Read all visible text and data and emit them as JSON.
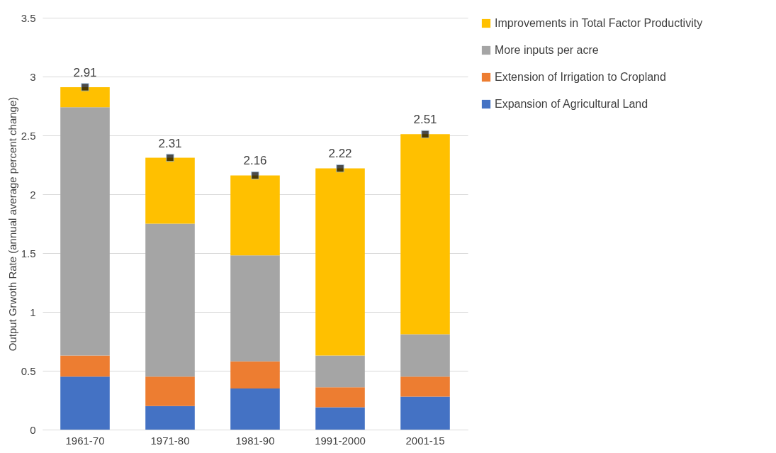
{
  "chart_data": {
    "type": "bar",
    "stacked": true,
    "ylabel": "Output Grwoth Rate (annual average percent change)",
    "categories": [
      "1961-70",
      "1971-80",
      "1981-90",
      "1991-2000",
      "2001-15"
    ],
    "series": [
      {
        "name": "Expansion of Agricultural Land",
        "color": "#4472c4",
        "values": [
          0.45,
          0.2,
          0.35,
          0.19,
          0.28
        ]
      },
      {
        "name": "Extension of Irrigation to Cropland",
        "color": "#ed7d31",
        "values": [
          0.18,
          0.25,
          0.23,
          0.17,
          0.17
        ]
      },
      {
        "name": "More inputs per acre",
        "color": "#a5a5a5",
        "values": [
          2.11,
          1.3,
          0.9,
          0.27,
          0.36
        ]
      },
      {
        "name": "Improvements in Total Factor Productivity",
        "color": "#ffc000",
        "values": [
          0.17,
          0.56,
          0.68,
          1.59,
          1.7
        ]
      },
      {
        "type": "scatter",
        "color": "#000000",
        "marker": "square",
        "x": [
          "1961-70",
          "1971-80",
          "1981-90",
          "1991-2000",
          "2001-15"
        ],
        "values": [
          2.91,
          2.31,
          2.16,
          2.22,
          2.51
        ],
        "value_labels": [
          "2.91",
          "2.31",
          "2.16",
          "2.22",
          "2.51"
        ]
      }
    ],
    "ylim": [
      0,
      3.5
    ],
    "yticks": [
      0,
      0.5,
      1,
      1.5,
      2,
      2.5,
      3,
      3.5
    ],
    "grid": "y",
    "legend": "right"
  }
}
